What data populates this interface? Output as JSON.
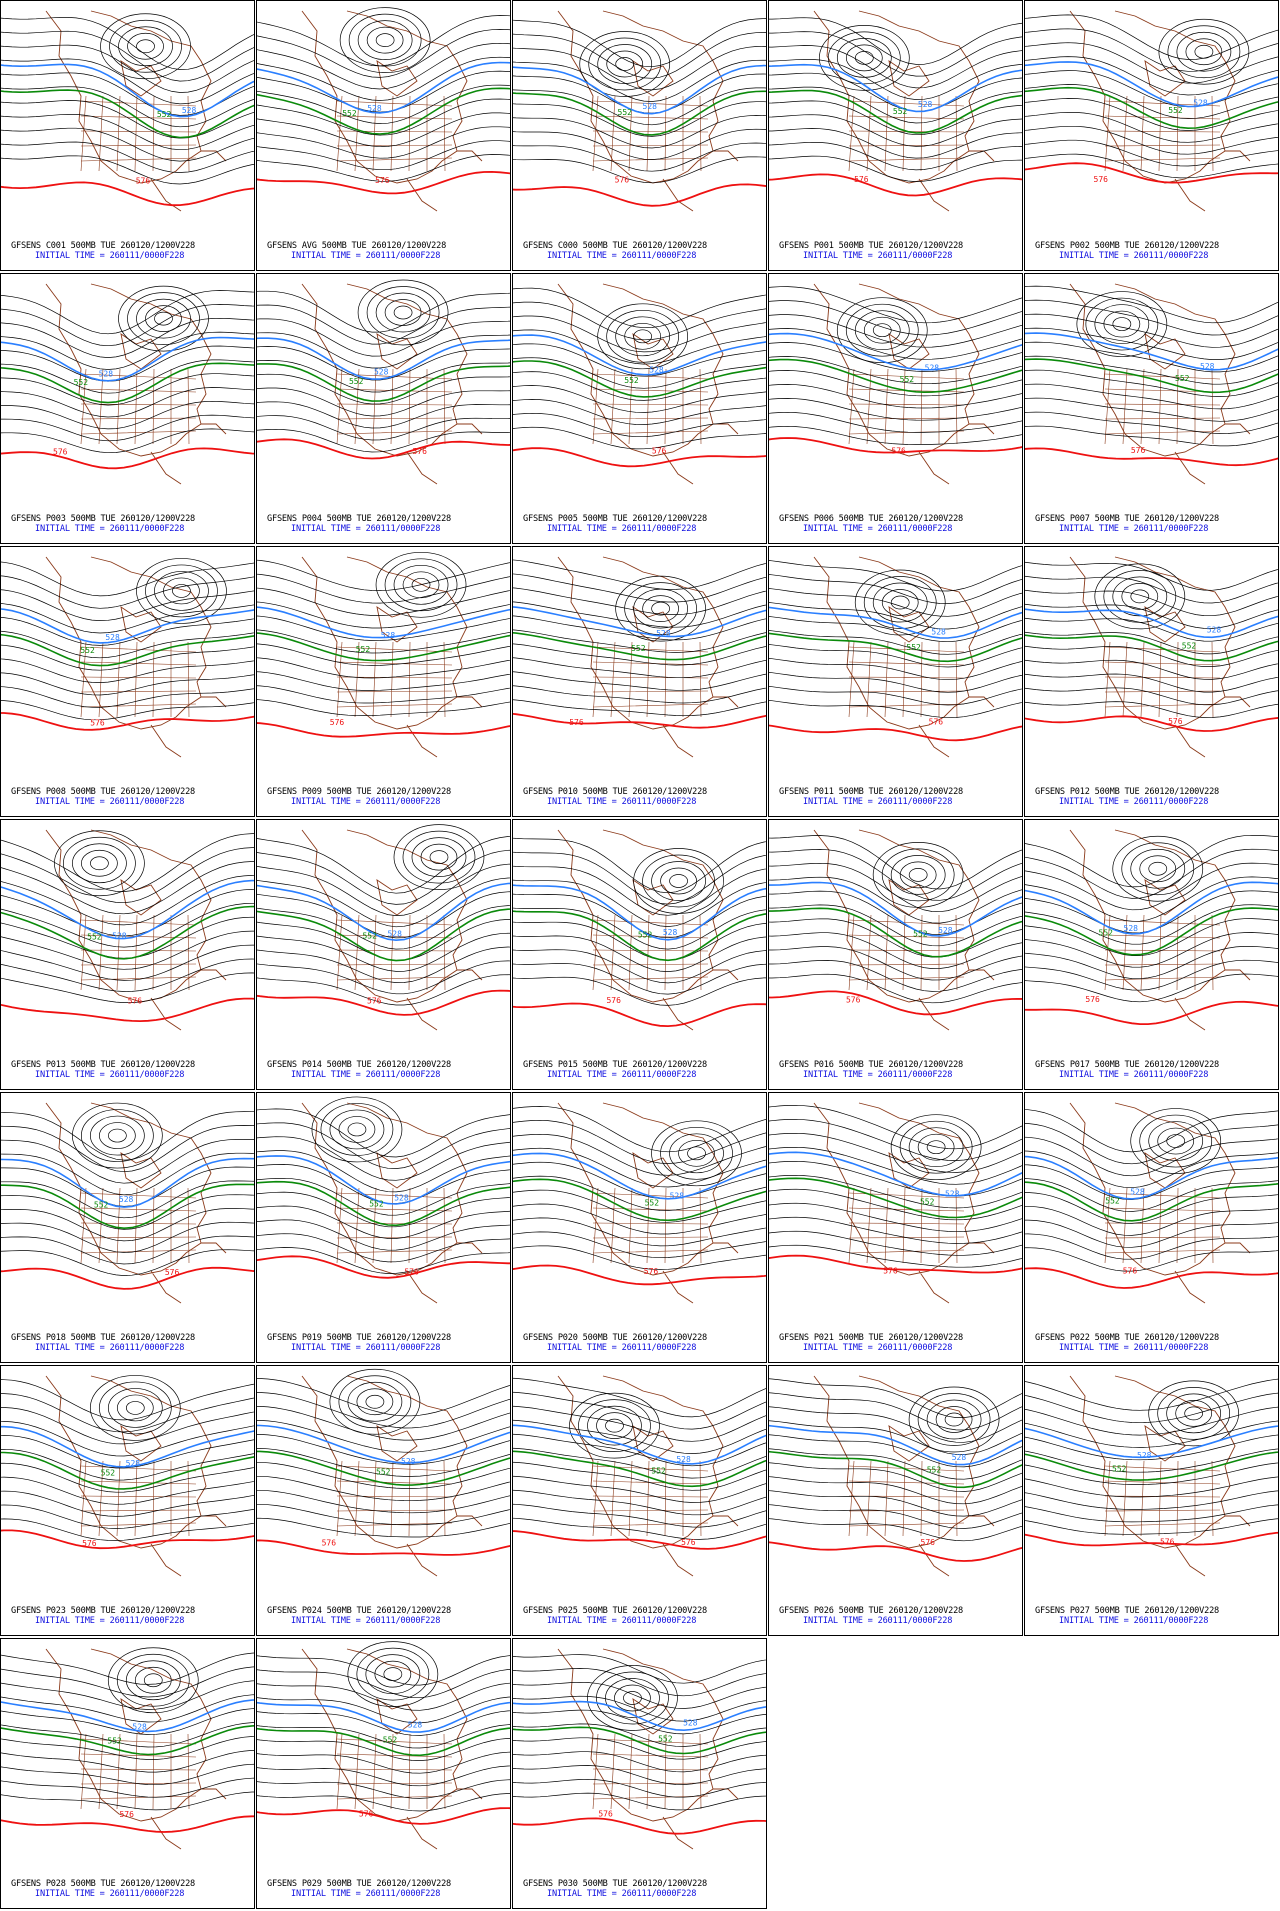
{
  "colors": {
    "height": "#000000",
    "h528": "#2a7fff",
    "h552": "#0a8a0a",
    "h576": "#ee1111",
    "coast": "#8b3a1a",
    "initial_time_text": "#1010e0"
  },
  "initial_time": "INITIAL TIME = 260111/0000F228",
  "panels": [
    {
      "title": "GFSENS C001 500MB TUE 260120/1200V228"
    },
    {
      "title": "GFSENS AVG 500MB TUE 260120/1200V228"
    },
    {
      "title": "GFSENS C000 500MB TUE 260120/1200V228"
    },
    {
      "title": "GFSENS P001 500MB TUE 260120/1200V228"
    },
    {
      "title": "GFSENS P002 500MB TUE 260120/1200V228"
    },
    {
      "title": "GFSENS P003 500MB TUE 260120/1200V228"
    },
    {
      "title": "GFSENS P004 500MB TUE 260120/1200V228"
    },
    {
      "title": "GFSENS P005 500MB TUE 260120/1200V228"
    },
    {
      "title": "GFSENS P006 500MB TUE 260120/1200V228"
    },
    {
      "title": "GFSENS P007 500MB TUE 260120/1200V228"
    },
    {
      "title": "GFSENS P008 500MB TUE 260120/1200V228"
    },
    {
      "title": "GFSENS P009 500MB TUE 260120/1200V228"
    },
    {
      "title": "GFSENS P010 500MB TUE 260120/1200V228"
    },
    {
      "title": "GFSENS P011 500MB TUE 260120/1200V228"
    },
    {
      "title": "GFSENS P012 500MB TUE 260120/1200V228"
    },
    {
      "title": "GFSENS P013 500MB TUE 260120/1200V228"
    },
    {
      "title": "GFSENS P014 500MB TUE 260120/1200V228"
    },
    {
      "title": "GFSENS P015 500MB TUE 260120/1200V228"
    },
    {
      "title": "GFSENS P016 500MB TUE 260120/1200V228"
    },
    {
      "title": "GFSENS P017 500MB TUE 260120/1200V228"
    },
    {
      "title": "GFSENS P018 500MB TUE 260120/1200V228"
    },
    {
      "title": "GFSENS P019 500MB TUE 260120/1200V228"
    },
    {
      "title": "GFSENS P020 500MB TUE 260120/1200V228"
    },
    {
      "title": "GFSENS P021 500MB TUE 260120/1200V228"
    },
    {
      "title": "GFSENS P022 500MB TUE 260120/1200V228"
    },
    {
      "title": "GFSENS P023 500MB TUE 260120/1200V228"
    },
    {
      "title": "GFSENS P024 500MB TUE 260120/1200V228"
    },
    {
      "title": "GFSENS P025 500MB TUE 260120/1200V228"
    },
    {
      "title": "GFSENS P026 500MB TUE 260120/1200V228"
    },
    {
      "title": "GFSENS P027 500MB TUE 260120/1200V228"
    },
    {
      "title": "GFSENS P028 500MB TUE 260120/1200V228"
    },
    {
      "title": "GFSENS P029 500MB TUE 260120/1200V228"
    },
    {
      "title": "GFSENS P030 500MB TUE 260120/1200V228"
    }
  ],
  "contour_labels": {
    "h528": "528",
    "h552": "552",
    "h576": "576"
  }
}
